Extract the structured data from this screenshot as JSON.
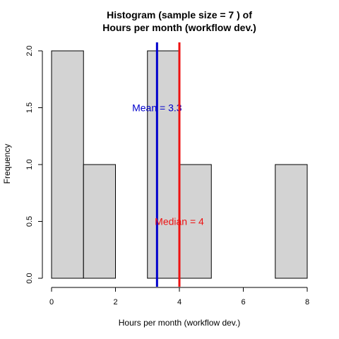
{
  "chart_data": {
    "type": "bar",
    "title": [
      "Histogram (sample size =  7 ) of",
      "Hours per month (workflow dev.)"
    ],
    "xlabel": "Hours per month (workflow dev.)",
    "ylabel": "Frequency",
    "xlim": [
      0,
      8
    ],
    "ylim": [
      0,
      2
    ],
    "bins": [
      {
        "x0": 0,
        "x1": 1,
        "count": 2
      },
      {
        "x0": 1,
        "x1": 2,
        "count": 1
      },
      {
        "x0": 2,
        "x1": 3,
        "count": 0
      },
      {
        "x0": 3,
        "x1": 4,
        "count": 2
      },
      {
        "x0": 4,
        "x1": 5,
        "count": 1
      },
      {
        "x0": 5,
        "x1": 6,
        "count": 0
      },
      {
        "x0": 6,
        "x1": 7,
        "count": 0
      },
      {
        "x0": 7,
        "x1": 8,
        "count": 1
      }
    ],
    "x_ticks": [
      "0",
      "2",
      "4",
      "6",
      "8"
    ],
    "y_ticks": [
      "0.0",
      "0.5",
      "1.0",
      "1.5",
      "2.0"
    ],
    "bar_fill": "#d3d3d3",
    "annotations": [
      {
        "label": "Mean = 3.3",
        "x": 3.3,
        "label_y": 1.5,
        "color": "#0000cc"
      },
      {
        "label": "Median = 4",
        "x": 4,
        "label_y": 0.5,
        "color": "#ee1111"
      }
    ],
    "grid": false
  }
}
